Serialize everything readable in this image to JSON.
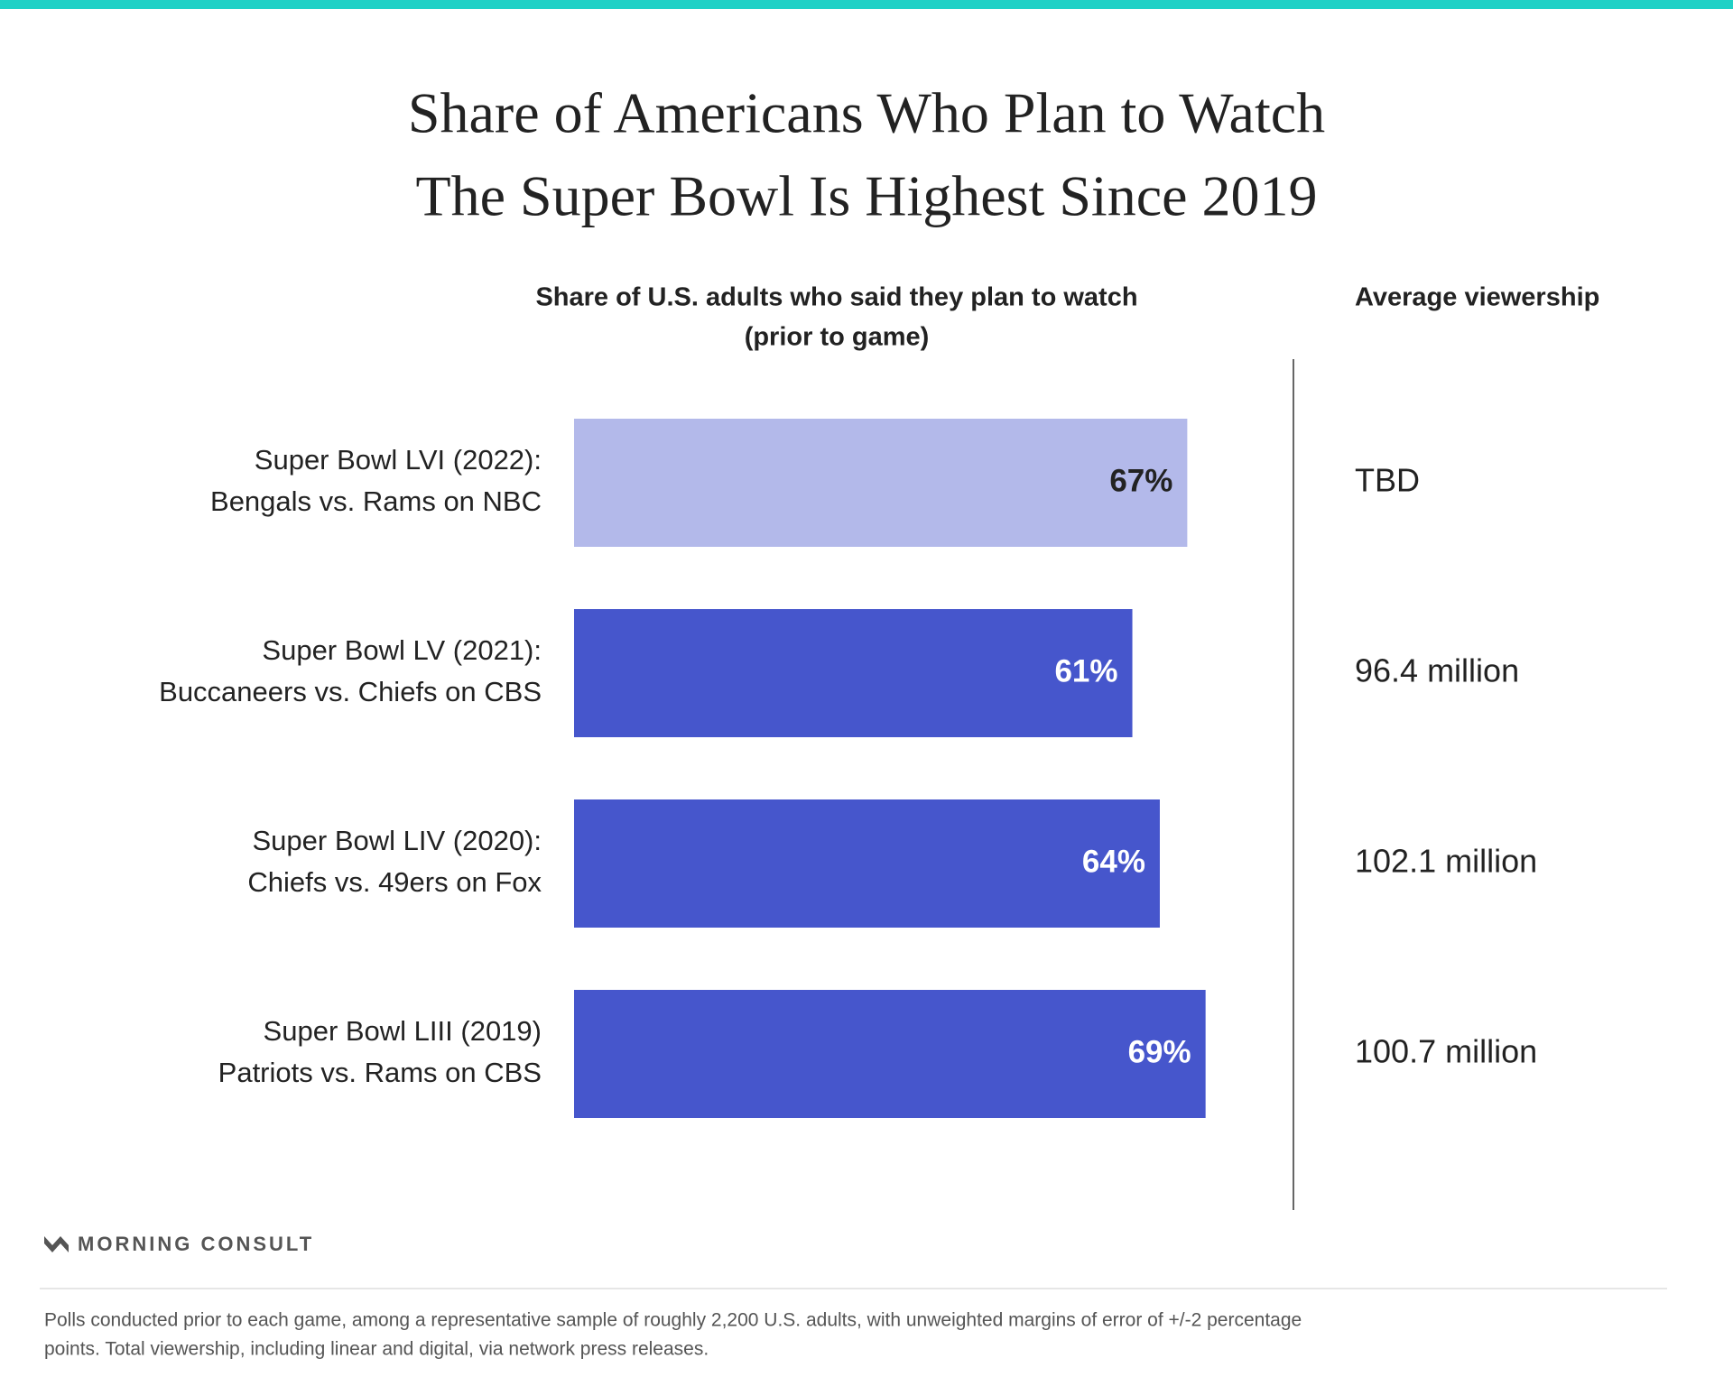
{
  "chart_data": {
    "type": "bar",
    "title": [
      "Share of Americans Who Plan to Watch",
      "The Super Bowl Is Highest Since 2019"
    ],
    "subtitle": [
      "Share of U.S. adults who said they plan to watch",
      "(prior to game)"
    ],
    "side_header": "Average viewership",
    "categories": [
      [
        "Super Bowl LVI (2022):",
        "Bengals vs. Rams on NBC"
      ],
      [
        "Super Bowl LV (2021):",
        "Buccaneers vs. Chiefs on CBS"
      ],
      [
        "Super Bowl LIV (2020):",
        "Chiefs vs. 49ers on Fox"
      ],
      [
        "Super Bowl LIII (2019)",
        "Patriots vs. Rams on CBS"
      ]
    ],
    "values": [
      67,
      61,
      64,
      69
    ],
    "value_labels": [
      "67%",
      "61%",
      "64%",
      "69%"
    ],
    "colors": [
      "#b3b9ea",
      "#4656cc",
      "#4656cc",
      "#4656cc"
    ],
    "viewership": [
      "TBD",
      "96.4 million",
      "102.1 million",
      "100.7 million"
    ],
    "logo": "MORNING CONSULT",
    "notes": [
      "Polls conducted prior to each game, among a representative sample of roughly 2,200 U.S. adults, with unweighted margins of error of +/-2 percentage",
      "points. Total viewership, including linear and digital, via network press releases."
    ]
  }
}
